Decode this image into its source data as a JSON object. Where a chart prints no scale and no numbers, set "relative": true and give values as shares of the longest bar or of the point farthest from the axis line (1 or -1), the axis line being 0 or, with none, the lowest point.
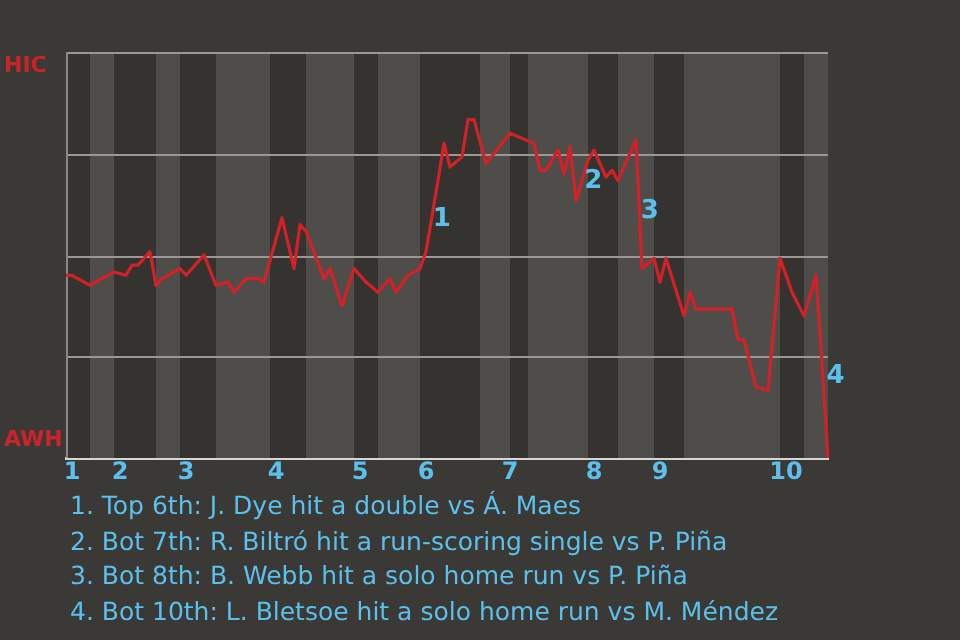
{
  "chart_data": {
    "type": "line",
    "relative": true,
    "categories": [
      null,
      "1",
      null,
      null,
      null,
      null,
      null,
      null,
      null,
      "2",
      null,
      null,
      null,
      null,
      null,
      null,
      null,
      null,
      null,
      null,
      "3",
      null,
      null,
      null,
      null,
      null,
      null,
      null,
      null,
      null,
      null,
      null,
      null,
      null,
      null,
      "4",
      null,
      null,
      null,
      null,
      null,
      null,
      null,
      null,
      null,
      null,
      null,
      null,
      null,
      "5",
      null,
      null,
      null,
      null,
      null,
      null,
      null,
      null,
      null,
      null,
      "6",
      null,
      null,
      null,
      null,
      null,
      null,
      null,
      null,
      null,
      null,
      null,
      null,
      null,
      "7",
      null,
      null,
      null,
      null,
      null,
      null,
      null,
      null,
      null,
      null,
      null,
      null,
      null,
      "8",
      null,
      null,
      null,
      null,
      null,
      null,
      null,
      null,
      null,
      null,
      "9",
      null,
      null,
      null,
      null,
      null,
      null,
      null,
      null,
      null,
      null,
      null,
      null,
      null,
      null,
      null,
      null,
      null,
      null,
      null,
      null,
      "10",
      null,
      null,
      null,
      null,
      null,
      null,
      null
    ],
    "series": [
      {
        "color": "#d42027",
        "values": [
          0.54,
          0.54,
          null,
          null,
          0.51,
          null,
          0.53,
          null,
          0.55,
          null,
          0.54,
          0.57,
          0.57,
          null,
          0.61,
          0.51,
          0.53,
          null,
          null,
          0.56,
          0.54,
          null,
          null,
          0.6,
          null,
          0.51,
          null,
          0.52,
          0.49,
          null,
          0.53,
          null,
          0.53,
          0.52,
          null,
          null,
          0.71,
          null,
          0.56,
          0.69,
          0.67,
          null,
          null,
          0.53,
          0.56,
          null,
          0.45,
          null,
          0.56,
          null,
          0.52,
          null,
          0.49,
          null,
          0.53,
          0.49,
          null,
          0.54,
          null,
          0.56,
          0.61,
          null,
          0.82,
          0.93,
          0.86,
          null,
          0.89,
          1,
          1,
          null,
          0.87,
          null,
          null,
          null,
          0.96,
          null,
          null,
          null,
          0.93,
          0.85,
          0.85,
          null,
          0.91,
          0.84,
          0.92,
          0.76,
          null,
          0.88,
          0.91,
          null,
          0.83,
          0.85,
          0.82,
          null,
          null,
          0.94,
          0.56,
          null,
          0.59,
          0.52,
          0.59,
          null,
          null,
          0.42,
          0.49,
          0.44,
          null,
          null,
          null,
          null,
          null,
          0.44,
          0.35,
          0.35,
          null,
          0.21,
          null,
          0.2,
          null,
          0.59,
          null,
          0.49,
          null,
          0.42,
          null,
          0.54,
          0.28,
          0
        ]
      }
    ],
    "annotations": [
      "HIC",
      "AWH",
      "1",
      "2",
      "3",
      "4",
      "1. Top 6th: J. Dye hit a double vs Á. Maes",
      "2. Bot 7th: R. Biltró hit a run-scoring single vs P. Piña",
      "3. Bot 8th: B. Webb hit a solo home run vs P. Piña",
      "4. Bot 10th: L. Bletsoe hit a solo home run vs M. Méndez"
    ]
  }
}
